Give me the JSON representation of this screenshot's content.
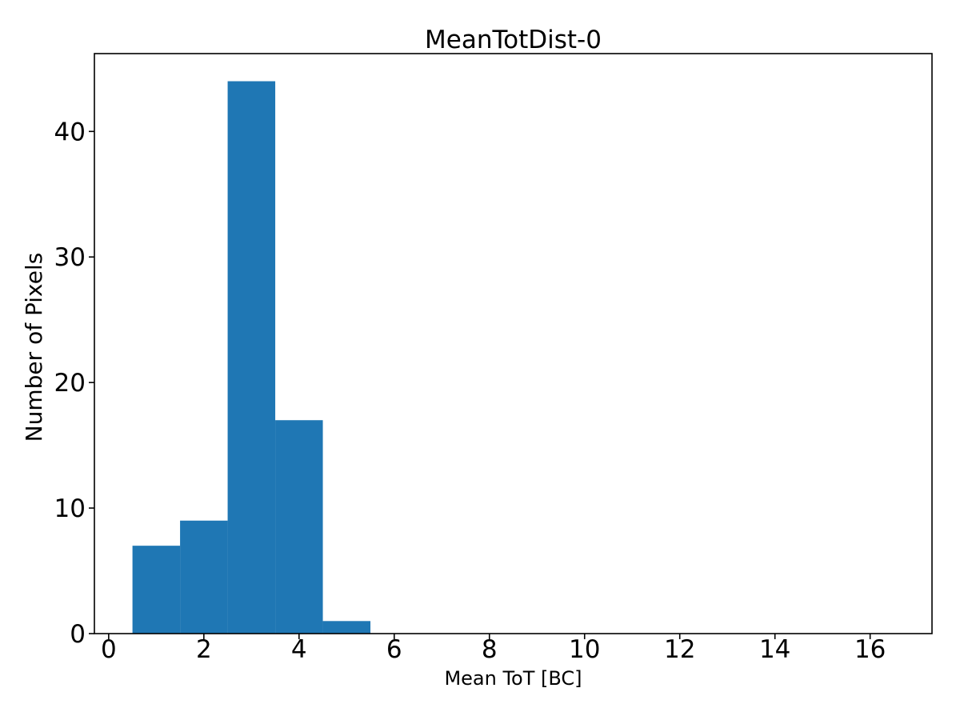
{
  "chart_data": {
    "type": "bar",
    "subtype": "histogram",
    "title": "MeanTotDist-0",
    "xlabel": "Mean ToT [BC]",
    "ylabel": "Number of Pixels",
    "bin_edges": [
      0.5,
      1.5,
      2.5,
      3.5,
      4.5,
      5.5
    ],
    "counts": [
      7,
      9,
      44,
      17,
      1
    ],
    "xticks": [
      0,
      2,
      4,
      6,
      8,
      10,
      12,
      14,
      16
    ],
    "yticks": [
      0,
      10,
      20,
      30,
      40
    ],
    "xlim": [
      -0.3,
      17.3
    ],
    "ylim": [
      0,
      46.2
    ],
    "bar_color": "#1f77b4",
    "axis_color": "#000000",
    "background_color": "#ffffff",
    "grid": false,
    "legend": null
  }
}
